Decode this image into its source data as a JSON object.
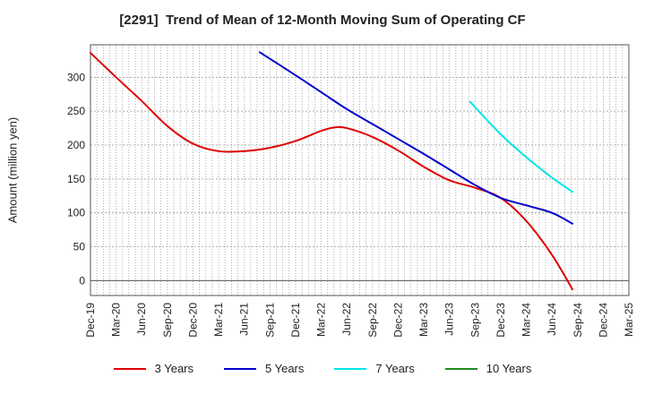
{
  "chart_data": {
    "type": "line",
    "title": "[2291]  Trend of Mean of 12-Month Moving Sum of Operating CF",
    "xlabel": "",
    "ylabel": "Amount (million yen)",
    "ylim": [
      -22,
      348
    ],
    "yticks": [
      0,
      50,
      100,
      150,
      200,
      250,
      300
    ],
    "x_tick_labels": [
      "Dec-19",
      "Mar-20",
      "Jun-20",
      "Sep-20",
      "Dec-20",
      "Mar-21",
      "Jun-21",
      "Sep-21",
      "Dec-21",
      "Mar-22",
      "Jun-22",
      "Sep-22",
      "Dec-22",
      "Mar-23",
      "Jun-23",
      "Sep-23",
      "Dec-23",
      "Mar-24",
      "Jun-24",
      "Sep-24",
      "Dec-24",
      "Mar-25"
    ],
    "grid": true,
    "legend_position": "bottom",
    "series": [
      {
        "name": "3 Years",
        "color": "#dd0000",
        "points": [
          [
            0,
            336
          ],
          [
            1,
            300
          ],
          [
            2,
            265
          ],
          [
            3,
            228
          ],
          [
            4,
            202
          ],
          [
            5,
            191
          ],
          [
            6,
            191
          ],
          [
            7,
            196
          ],
          [
            8,
            206
          ],
          [
            9,
            221
          ],
          [
            9.5,
            226
          ],
          [
            10,
            225
          ],
          [
            11,
            212
          ],
          [
            12,
            192
          ],
          [
            13,
            168
          ],
          [
            14,
            148
          ],
          [
            15,
            137
          ],
          [
            16,
            122
          ],
          [
            17,
            88
          ],
          [
            18,
            38
          ],
          [
            18.8,
            -13
          ]
        ]
      },
      {
        "name": "5 Years",
        "color": "#0000cc",
        "points": [
          [
            6.6,
            337
          ],
          [
            8,
            303
          ],
          [
            9,
            278
          ],
          [
            10,
            253
          ],
          [
            11,
            231
          ],
          [
            12,
            209
          ],
          [
            13,
            187
          ],
          [
            14,
            164
          ],
          [
            15,
            141
          ],
          [
            16,
            122
          ],
          [
            17,
            111
          ],
          [
            18,
            100
          ],
          [
            18.8,
            84
          ]
        ]
      },
      {
        "name": "7 Years",
        "color": "#00e5e5",
        "points": [
          [
            14.8,
            264
          ],
          [
            16,
            216
          ],
          [
            17,
            182
          ],
          [
            18,
            152
          ],
          [
            18.8,
            131
          ]
        ]
      },
      {
        "name": "10 Years",
        "color": "#228b22",
        "points": []
      }
    ]
  }
}
